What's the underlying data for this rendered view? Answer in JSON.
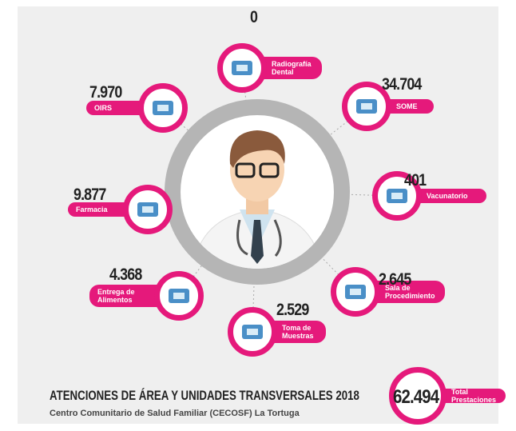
{
  "title": "ATENCIONES DE ÁREA Y UNIDADES TRANSVERSALES 2018",
  "subtitle": "Centro Comunitario de Salud Familiar (CECOSF) La Tortuga",
  "nodes": [
    {
      "value": "0",
      "label": "Radiografía Dental"
    },
    {
      "value": "7.970",
      "label": "OIRS"
    },
    {
      "value": "34.704",
      "label": "SOME"
    },
    {
      "value": "401",
      "label": "Vacunatorio"
    },
    {
      "value": "9.877",
      "label": "Farmacia"
    },
    {
      "value": "4.368",
      "label": "Entrega de Alimentos"
    },
    {
      "value": "2.529",
      "label": "Toma de Muestras"
    },
    {
      "value": "2.645",
      "label": "Sala de Procedimiento"
    }
  ],
  "total": {
    "value": "62.494",
    "label": "Total Prestaciones"
  }
}
